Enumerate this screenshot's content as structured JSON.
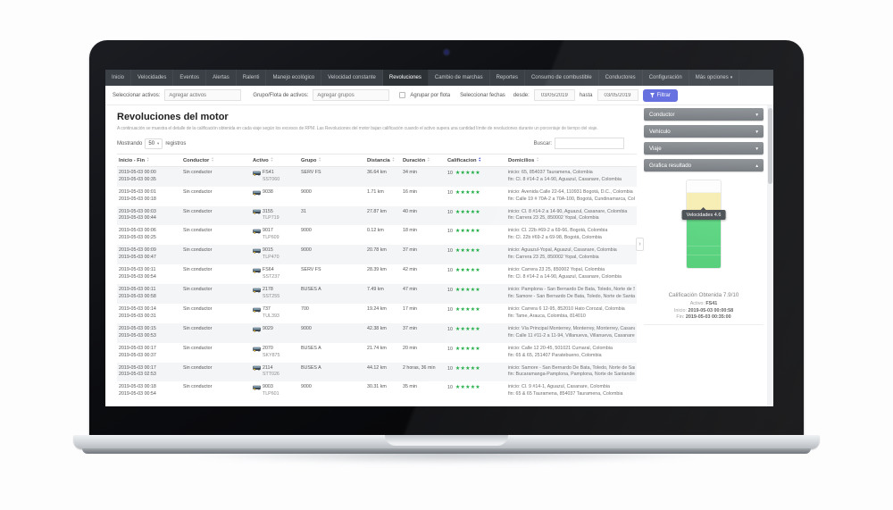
{
  "nav": {
    "tabs": [
      {
        "label": "Inicio"
      },
      {
        "label": "Velocidades"
      },
      {
        "label": "Eventos"
      },
      {
        "label": "Alertas"
      },
      {
        "label": "Ralenti"
      },
      {
        "label": "Manejo ecológico"
      },
      {
        "label": "Velocidad constante"
      },
      {
        "label": "Revoluciones",
        "active": true
      },
      {
        "label": "Cambio de marchas"
      },
      {
        "label": "Reportes"
      },
      {
        "label": "Consumo de combustible"
      },
      {
        "label": "Conductores"
      },
      {
        "label": "Configuración"
      },
      {
        "label": "Más opciones",
        "caret": true
      }
    ]
  },
  "filters": {
    "assets_label": "Seleccionar activos:",
    "assets_placeholder": "Agregar activos",
    "group_label": "Grupo/Flota de activos:",
    "groups_placeholder": "Agregar grupos",
    "group_by_fleet_label": "Agrupar por flota",
    "dates_label": "Seleccionar fechas",
    "from_label": "desde:",
    "from_value": "03/05/2019",
    "to_label": "hasta",
    "to_value": "03/05/2019",
    "filter_button": "Filtrar"
  },
  "page": {
    "title": "Revoluciones del motor",
    "description": "A continuación se muestra el detalle de la calificación obtenida en cada viaje según los excesos de RPM. Las Revoluciones del motor bajan calificación cuando el activo supera una cantidad límite de revoluciones durante un porcentaje de tiempo del viaje."
  },
  "controls": {
    "showing_label": "Mostrando",
    "page_size": "50",
    "records_label": "registros",
    "search_label": "Buscar:"
  },
  "table": {
    "columns": [
      {
        "label": "Inicio - Fin"
      },
      {
        "label": "Conductor"
      },
      {
        "label": "Activo"
      },
      {
        "label": "Grupo"
      },
      {
        "label": "Distancia"
      },
      {
        "label": "Duración"
      },
      {
        "label": "Calificacion",
        "sorted": true
      },
      {
        "label": "Domicilios"
      }
    ],
    "rows": [
      {
        "start": "2019-05-03 00:00",
        "end": "2019-05-03 00:35",
        "driver": "Sin conductor",
        "asset": "FS41",
        "plate": "SST060",
        "group": "SERV FS",
        "distance": "36.64 km",
        "duration": "34 min",
        "score": "10",
        "stars": "★★★★★",
        "origin": "inicio: 65, 854037 Tauramena, Colombia",
        "destination": "fin: Cl. 8 #14-2 a 14-90, Aguazul, Casanare, Colombia"
      },
      {
        "start": "2019-05-03 00:01",
        "end": "2019-05-03 00:18",
        "driver": "Sin conductor",
        "asset": "9038",
        "plate": "",
        "group": "9000",
        "distance": "1.71 km",
        "duration": "16 min",
        "score": "10",
        "stars": "★★★★★",
        "origin": "inicio: Avenida Calle 22-64, 110931 Bogotá, D.C., Colombia",
        "destination": "fin: Calle 19 # 70A-2 a 70A-100, Bogotá, Cundinamarca, Colombia"
      },
      {
        "start": "2019-05-03 00:03",
        "end": "2019-05-03 00:44",
        "driver": "Sin conductor",
        "asset": "3155",
        "plate": "TLP719",
        "group": "31",
        "distance": "27.87 km",
        "duration": "40 min",
        "score": "10",
        "stars": "★★★★★",
        "origin": "inicio: Cl. 8 #14-2 a 14-90, Aguazul, Casanare, Colombia",
        "destination": "fin: Carrera 23 25, 850002 Yopal, Colombia"
      },
      {
        "start": "2019-05-03 00:06",
        "end": "2019-05-03 00:25",
        "driver": "Sin conductor",
        "asset": "9017",
        "plate": "TLP609",
        "group": "9000",
        "distance": "0.12 km",
        "duration": "18 min",
        "score": "10",
        "stars": "★★★★★",
        "origin": "inicio: Cl. 22b #69-2 a 69-66, Bogotá, Colombia",
        "destination": "fin: Cl. 22b #69-2 a 69-98, Bogotá, Colombia"
      },
      {
        "start": "2019-05-03 00:09",
        "end": "2019-05-03 00:47",
        "driver": "Sin conductor",
        "asset": "9015",
        "plate": "TLP470",
        "group": "9000",
        "distance": "20.78 km",
        "duration": "37 min",
        "score": "10",
        "stars": "★★★★★",
        "origin": "inicio: Aguazul-Yopal, Aguazul, Casanare, Colombia",
        "destination": "fin: Carrera 23 25, 850002 Yopal, Colombia"
      },
      {
        "start": "2019-05-03 00:11",
        "end": "2019-05-03 00:54",
        "driver": "Sin conductor",
        "asset": "FS64",
        "plate": "SST237",
        "group": "SERV FS",
        "distance": "28.39 km",
        "duration": "42 min",
        "score": "10",
        "stars": "★★★★★",
        "origin": "inicio: Carrera 23 25, 850002 Yopal, Colombia",
        "destination": "fin: Cl. 8 #14-2 a 14-90, Aguazul, Casanare, Colombia"
      },
      {
        "start": "2019-05-03 00:11",
        "end": "2019-05-03 00:58",
        "driver": "Sin conductor",
        "asset": "2178",
        "plate": "SST255",
        "group": "BUSES A",
        "distance": "7.49 km",
        "duration": "47 min",
        "score": "10",
        "stars": "★★★★★",
        "origin": "inicio: Pamplona - San Bernardo De Bata, Toledo, Norte de Santander, Colombia",
        "destination": "fin: Samore - San Bernardo De Bata, Toledo, Norte de Santander, Colombia"
      },
      {
        "start": "2019-05-03 00:14",
        "end": "2019-05-03 00:31",
        "driver": "Sin conductor",
        "asset": "737",
        "plate": "TUL393",
        "group": "700",
        "distance": "19.24 km",
        "duration": "17 min",
        "score": "10",
        "stars": "★★★★★",
        "origin": "inicio: Carrera 6 12-95, 852010 Hato Corozal, Colombia",
        "destination": "fin: Tame, Arauca, Colombia, 814010"
      },
      {
        "start": "2019-05-03 00:15",
        "end": "2019-05-03 00:53",
        "driver": "Sin conductor",
        "asset": "9029",
        "plate": "",
        "group": "9000",
        "distance": "42.38 km",
        "duration": "37 min",
        "score": "10",
        "stars": "★★★★★",
        "origin": "inicio: Vía Principal Monterrey, Monterrey, Monterrey, Casanare, Colombia",
        "destination": "fin: Calle 11 #11-2 a 11-94, Villanueva, Villanueva, Casanare, Colombia"
      },
      {
        "start": "2019-05-03 00:17",
        "end": "2019-05-03 00:37",
        "driver": "Sin conductor",
        "asset": "2070",
        "plate": "SKY875",
        "group": "BUSES A",
        "distance": "21.74 km",
        "duration": "20 min",
        "score": "10",
        "stars": "★★★★★",
        "origin": "inicio: Calle 12 20-45, 501021 Cumaral, Colombia",
        "destination": "fin: 65 & 65, 251407 Paratebueno, Colombia"
      },
      {
        "start": "2019-05-03 00:17",
        "end": "2019-05-03 02:53",
        "driver": "Sin conductor",
        "asset": "2114",
        "plate": "STT026",
        "group": "BUSES A",
        "distance": "44.12 km",
        "duration": "2 horas, 36 min",
        "score": "10",
        "stars": "★★★★★",
        "origin": "inicio: Samore - San Bernardo De Bata, Toledo, Norte de Santander, Colombia",
        "destination": "fin: Bucaramanga-Pamplona, Pamplona, Norte de Santander, Colombia"
      },
      {
        "start": "2019-05-03 00:18",
        "end": "2019-05-03 00:54",
        "driver": "Sin conductor",
        "asset": "9003",
        "plate": "TLP601",
        "group": "9000",
        "distance": "30.31 km",
        "duration": "35 min",
        "score": "10",
        "stars": "★★★★★",
        "origin": "inicio: Cl. 9 #14-1, Aguazul, Casanare, Colombia",
        "destination": "fin: 65 & 65 Tauramena, 854037 Tauramena, Colombia"
      }
    ]
  },
  "sidebar": {
    "panels": [
      {
        "label": "Conductor",
        "expanded": false
      },
      {
        "label": "Vehículo",
        "expanded": false
      },
      {
        "label": "Viaje",
        "expanded": false
      },
      {
        "label": "Grafica resultado",
        "expanded": true
      }
    ],
    "chart": {
      "type": "stacked-column",
      "tooltip": "Velocidades 4.6",
      "segments": [
        {
          "name": "blanco",
          "color": "#fdfdfd",
          "pct": 14
        },
        {
          "name": "velocidades",
          "color": "#f6edb0",
          "pct": 31
        },
        {
          "name": "calificacion",
          "color": "#4fd077",
          "pct": 55
        }
      ]
    },
    "summary": {
      "score_label": "Calificación Obtenida 7.9/10",
      "asset_label": "Activo:",
      "asset_value": "FS41",
      "start_label": "Inicio:",
      "start_value": "2019-05-03 00:00:58",
      "end_label": "Fin:",
      "end_value": "2019-05-03 00:35:00"
    },
    "collapse_glyph": "›"
  }
}
